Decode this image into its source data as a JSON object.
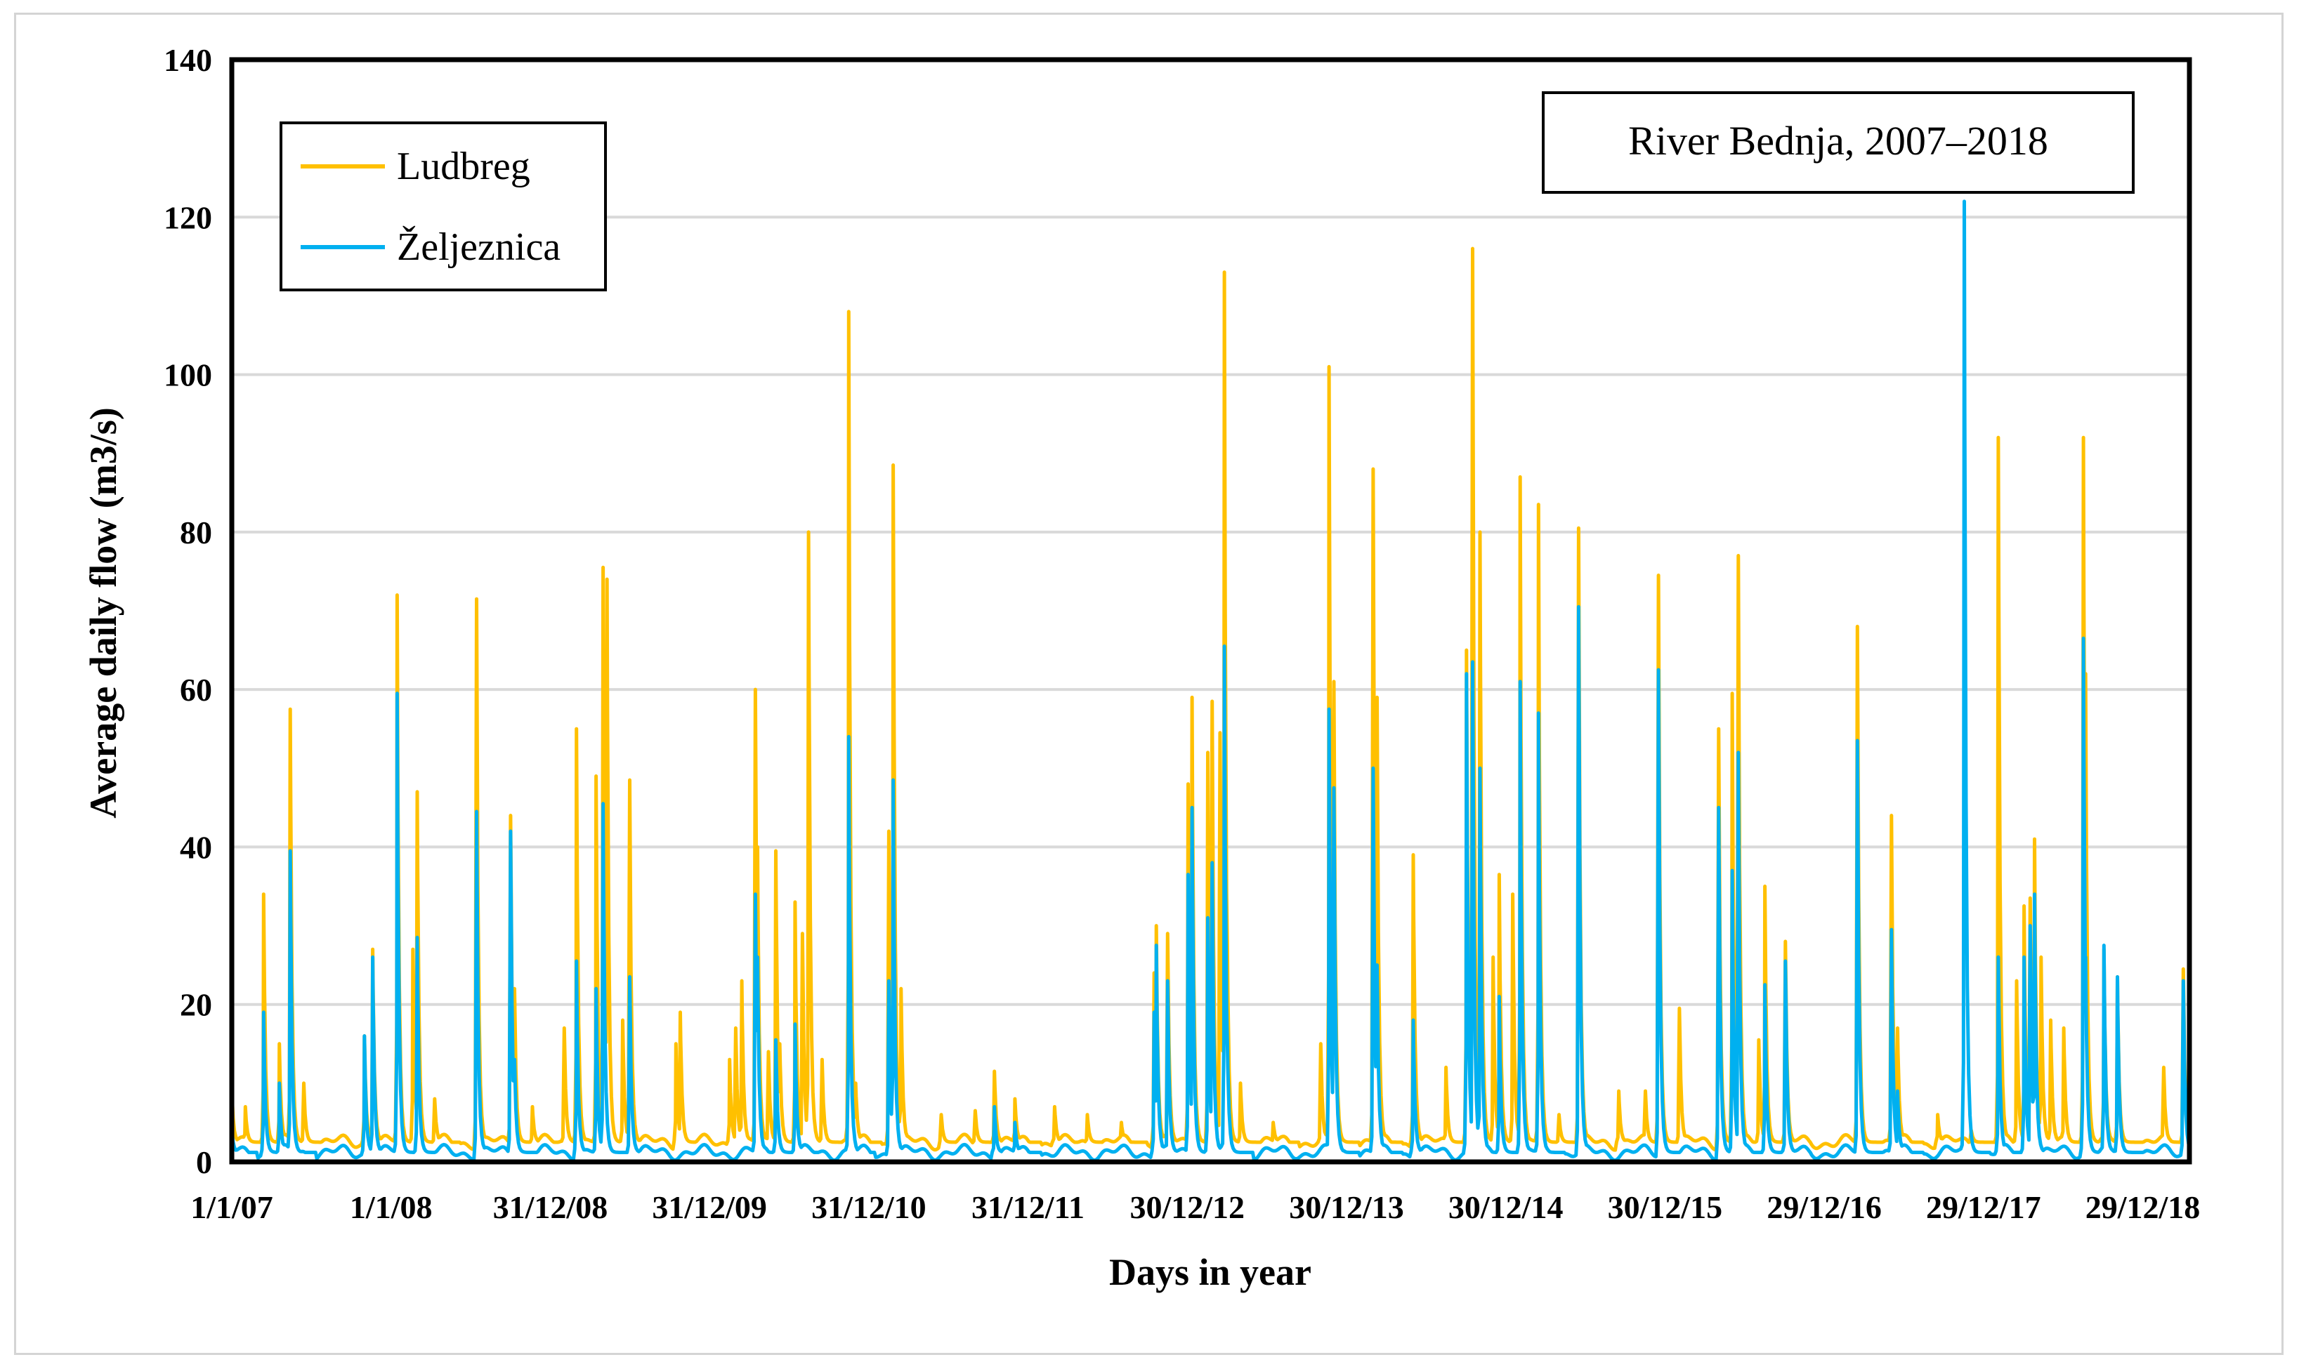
{
  "chart_data": {
    "type": "line",
    "title": "",
    "annotation": "River Bednja, 2007–2018",
    "xlabel": "Days in year",
    "ylabel": "Average daily flow (m3/s)",
    "x_range": [
      "1/1/07",
      "29/12/18"
    ],
    "x_tick_labels": [
      "1/1/07",
      "1/1/08",
      "31/12/08",
      "31/12/09",
      "31/12/10",
      "31/12/11",
      "30/12/12",
      "30/12/13",
      "30/12/14",
      "30/12/15",
      "29/12/16",
      "29/12/17",
      "29/12/18"
    ],
    "ylim": [
      0,
      140
    ],
    "y_ticks": [
      0,
      20,
      40,
      60,
      80,
      100,
      120,
      140
    ],
    "grid": "horizontal",
    "legend_position": "top-left",
    "series": [
      {
        "name": "Ludbreg",
        "color": "#FFC000",
        "peaks": [
          [
            "1/1/07",
            9
          ],
          [
            "1/2/07",
            7
          ],
          [
            "15/3/07",
            34
          ],
          [
            "20/4/07",
            15
          ],
          [
            "15/5/07",
            57.5
          ],
          [
            "15/6/07",
            10
          ],
          [
            "1/11/07",
            16
          ],
          [
            "20/11/07",
            27
          ],
          [
            "15/1/08",
            72
          ],
          [
            "20/2/08",
            27
          ],
          [
            "1/3/08",
            47
          ],
          [
            "10/4/08",
            8
          ],
          [
            "15/7/08",
            71.5
          ],
          [
            "1/10/08",
            44
          ],
          [
            "10/10/08",
            22
          ],
          [
            "20/11/08",
            7
          ],
          [
            "1/2/09",
            17
          ],
          [
            "1/3/09",
            55
          ],
          [
            "15/4/09",
            49
          ],
          [
            "1/5/09",
            75.5
          ],
          [
            "10/5/09",
            74
          ],
          [
            "15/6/09",
            18
          ],
          [
            "1/7/09",
            48.5
          ],
          [
            "15/10/09",
            15
          ],
          [
            "25/10/09",
            19
          ],
          [
            "15/2/10",
            13
          ],
          [
            "1/3/10",
            17
          ],
          [
            "15/3/10",
            23
          ],
          [
            "15/4/10",
            60
          ],
          [
            "20/4/10",
            40
          ],
          [
            "15/5/10",
            14
          ],
          [
            "1/6/10",
            39.5
          ],
          [
            "10/6/10",
            15
          ],
          [
            "15/7/10",
            33
          ],
          [
            "1/8/10",
            29
          ],
          [
            "15/8/10",
            80
          ],
          [
            "15/9/10",
            13
          ],
          [
            "15/11/10",
            108
          ],
          [
            "1/12/10",
            10
          ],
          [
            "15/2/11",
            42
          ],
          [
            "25/2/11",
            88.5
          ],
          [
            "15/3/11",
            22
          ],
          [
            "15/6/11",
            6
          ],
          [
            "1/9/11",
            6.5
          ],
          [
            "15/10/11",
            11.5
          ],
          [
            "1/12/11",
            8
          ],
          [
            "1/3/12",
            7
          ],
          [
            "15/5/12",
            6
          ],
          [
            "1/8/12",
            5
          ],
          [
            "15/10/12",
            24
          ],
          [
            "20/10/12",
            30
          ],
          [
            "15/11/12",
            29
          ],
          [
            "1/1/13",
            48
          ],
          [
            "10/1/13",
            59
          ],
          [
            "15/2/13",
            52
          ],
          [
            "25/2/13",
            58.5
          ],
          [
            "15/3/13",
            54.5
          ],
          [
            "25/3/13",
            113
          ],
          [
            "1/4/13",
            27
          ],
          [
            "1/5/13",
            10
          ],
          [
            "15/7/13",
            5
          ],
          [
            "1/11/13",
            15
          ],
          [
            "20/11/13",
            101
          ],
          [
            "1/12/13",
            61
          ],
          [
            "1/3/14",
            88
          ],
          [
            "10/3/14",
            59
          ],
          [
            "1/6/14",
            39
          ],
          [
            "15/8/14",
            12
          ],
          [
            "1/10/14",
            65
          ],
          [
            "15/10/14",
            116
          ],
          [
            "1/11/14",
            80
          ],
          [
            "1/12/14",
            26
          ],
          [
            "15/12/14",
            36.5
          ],
          [
            "15/1/15",
            34
          ],
          [
            "1/2/15",
            87
          ],
          [
            "15/3/15",
            83.5
          ],
          [
            "1/5/15",
            6
          ],
          [
            "15/6/15",
            80.5
          ],
          [
            "15/9/15",
            9
          ],
          [
            "15/11/15",
            9
          ],
          [
            "15/12/15",
            74.5
          ],
          [
            "1/2/16",
            19.5
          ],
          [
            "1/5/16",
            55
          ],
          [
            "1/6/16",
            59.5
          ],
          [
            "15/6/16",
            77
          ],
          [
            "1/8/16",
            15.5
          ],
          [
            "15/8/16",
            35
          ],
          [
            "1/10/16",
            28
          ],
          [
            "15/3/17",
            68
          ],
          [
            "1/6/17",
            44
          ],
          [
            "15/6/17",
            17
          ],
          [
            "15/9/17",
            6
          ],
          [
            "1/12/17",
            4
          ],
          [
            "1/2/18",
            92
          ],
          [
            "15/3/18",
            23
          ],
          [
            "1/4/18",
            32.5
          ],
          [
            "15/4/18",
            33.5
          ],
          [
            "25/4/18",
            41
          ],
          [
            "10/5/18",
            26
          ],
          [
            "1/6/18",
            18
          ],
          [
            "1/7/18",
            17
          ],
          [
            "15/8/18",
            92
          ],
          [
            "20/8/18",
            62
          ],
          [
            "1/10/18",
            27
          ],
          [
            "1/11/18",
            23.5
          ],
          [
            "15/2/19",
            12
          ],
          [
            "1/4/19",
            24.5
          ]
        ],
        "baseflow": 2.5
      },
      {
        "name": "Željeznica",
        "color": "#00B0F0",
        "peaks": [
          [
            "1/1/07",
            4
          ],
          [
            "15/3/07",
            19
          ],
          [
            "20/4/07",
            10
          ],
          [
            "15/5/07",
            39.5
          ],
          [
            "1/11/07",
            16
          ],
          [
            "20/11/07",
            26
          ],
          [
            "15/1/08",
            59.5
          ],
          [
            "1/3/08",
            28.5
          ],
          [
            "15/7/08",
            44.5
          ],
          [
            "1/10/08",
            42
          ],
          [
            "10/10/08",
            13
          ],
          [
            "1/3/09",
            25.5
          ],
          [
            "15/4/09",
            22
          ],
          [
            "1/5/09",
            45.5
          ],
          [
            "1/7/09",
            23.5
          ],
          [
            "15/4/10",
            34
          ],
          [
            "20/4/10",
            26
          ],
          [
            "1/6/10",
            15.5
          ],
          [
            "15/7/10",
            17.5
          ],
          [
            "15/11/10",
            54
          ],
          [
            "15/2/11",
            23
          ],
          [
            "25/2/11",
            48.5
          ],
          [
            "15/10/11",
            7
          ],
          [
            "1/12/11",
            5
          ],
          [
            "15/10/12",
            19
          ],
          [
            "20/10/12",
            27.5
          ],
          [
            "15/11/12",
            23
          ],
          [
            "1/1/13",
            36.5
          ],
          [
            "10/1/13",
            45
          ],
          [
            "15/2/13",
            31
          ],
          [
            "25/2/13",
            38
          ],
          [
            "25/3/13",
            65.5
          ],
          [
            "1/4/13",
            15
          ],
          [
            "20/11/13",
            57.5
          ],
          [
            "1/12/13",
            47.5
          ],
          [
            "1/3/14",
            50
          ],
          [
            "10/3/14",
            25
          ],
          [
            "1/6/14",
            18
          ],
          [
            "1/10/14",
            62
          ],
          [
            "15/10/14",
            63.5
          ],
          [
            "1/11/14",
            50
          ],
          [
            "15/12/14",
            21
          ],
          [
            "1/2/15",
            61
          ],
          [
            "15/3/15",
            57
          ],
          [
            "15/6/15",
            70.5
          ],
          [
            "15/12/15",
            62.5
          ],
          [
            "1/5/16",
            45
          ],
          [
            "1/6/16",
            37
          ],
          [
            "15/6/16",
            52
          ],
          [
            "15/8/16",
            22.5
          ],
          [
            "1/10/16",
            25.5
          ],
          [
            "15/3/17",
            53.5
          ],
          [
            "1/6/17",
            29.5
          ],
          [
            "15/6/17",
            9
          ],
          [
            "15/11/17",
            122
          ],
          [
            "1/2/18",
            26
          ],
          [
            "1/4/18",
            26
          ],
          [
            "15/4/18",
            30
          ],
          [
            "25/4/18",
            34
          ],
          [
            "15/8/18",
            66.5
          ],
          [
            "20/8/18",
            26
          ],
          [
            "1/10/18",
            27.5
          ],
          [
            "1/11/18",
            23.5
          ],
          [
            "1/4/19",
            23
          ]
        ],
        "baseflow": 1.2
      }
    ]
  }
}
